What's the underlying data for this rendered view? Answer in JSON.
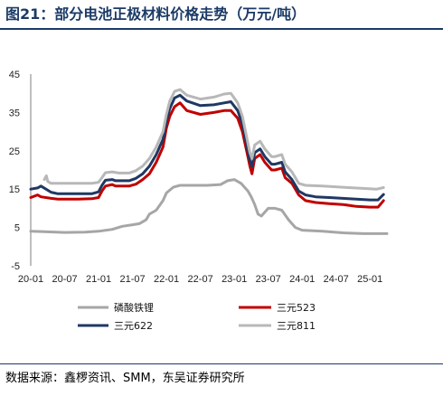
{
  "figure": {
    "title": "图21：部分电池正极材料价格走势（万元/吨）",
    "source": "数据来源：鑫椤资讯、SMM，东吴证券研究所"
  },
  "chart_data": {
    "type": "line",
    "ylim": [
      -5,
      45
    ],
    "yticks": [
      "45",
      "35",
      "25",
      "15",
      "5",
      "-5"
    ],
    "ytick_values": [
      45,
      35,
      25,
      15,
      5,
      -5
    ],
    "xlim": [
      2020.0,
      2025.25
    ],
    "xticks": [
      "20-01",
      "20-07",
      "21-01",
      "21-07",
      "22-01",
      "22-07",
      "23-01",
      "23-07",
      "24-01",
      "24-07",
      "25-01"
    ],
    "xtick_values": [
      2020.0,
      2020.5,
      2021.0,
      2021.5,
      2022.0,
      2022.5,
      2023.0,
      2023.5,
      2024.0,
      2024.5,
      2025.0
    ],
    "grid": false,
    "legend_position": "bottom",
    "series": [
      {
        "name": "磷酸铁锂",
        "color": "#a6a6a6",
        "x": [
          2020.0,
          2020.2,
          2020.5,
          2020.8,
          2021.0,
          2021.2,
          2021.35,
          2021.5,
          2021.6,
          2021.7,
          2021.75,
          2021.85,
          2021.95,
          2022.0,
          2022.1,
          2022.2,
          2022.4,
          2022.6,
          2022.8,
          2022.9,
          2023.0,
          2023.1,
          2023.2,
          2023.25,
          2023.3,
          2023.35,
          2023.4,
          2023.5,
          2023.6,
          2023.7,
          2023.8,
          2023.9,
          2024.0,
          2024.3,
          2024.6,
          2024.9,
          2025.1,
          2025.25
        ],
        "y": [
          4,
          3.9,
          3.7,
          3.8,
          4,
          4.5,
          5.3,
          5.7,
          6,
          7,
          8.5,
          9.5,
          12,
          14,
          15.5,
          16,
          16,
          16,
          16.2,
          17.2,
          17.5,
          16.5,
          14.5,
          13,
          11,
          8.5,
          8,
          10,
          10,
          9.5,
          7,
          5,
          4.3,
          4,
          3.6,
          3.4,
          3.4,
          3.4
        ]
      },
      {
        "name": "三元523",
        "color": "#c00000",
        "x": [
          2020.0,
          2020.1,
          2020.15,
          2020.3,
          2020.4,
          2020.5,
          2020.7,
          2020.9,
          2021.0,
          2021.05,
          2021.1,
          2021.2,
          2021.25,
          2021.3,
          2021.45,
          2021.55,
          2021.65,
          2021.75,
          2021.85,
          2021.95,
          2022.0,
          2022.05,
          2022.12,
          2022.2,
          2022.3,
          2022.5,
          2022.7,
          2022.85,
          2022.95,
          2023.05,
          2023.12,
          2023.2,
          2023.23,
          2023.26,
          2023.3,
          2023.38,
          2023.45,
          2023.55,
          2023.6,
          2023.7,
          2023.75,
          2023.85,
          2023.95,
          2024.05,
          2024.2,
          2024.4,
          2024.6,
          2024.8,
          2025.0,
          2025.12,
          2025.2
        ],
        "y": [
          12.8,
          13.5,
          13,
          12.6,
          12.4,
          12.4,
          12.4,
          12.5,
          12.8,
          14.5,
          15.8,
          16.2,
          15.8,
          15.8,
          15.8,
          16.3,
          17.5,
          19,
          22,
          26,
          31,
          34,
          36.5,
          37.5,
          35.5,
          34.5,
          35,
          35.5,
          35.5,
          33.5,
          30,
          23.5,
          21,
          19,
          23,
          24,
          22,
          20,
          20,
          20.5,
          18,
          16.5,
          13.5,
          12,
          11.5,
          11.2,
          11,
          10.5,
          10.3,
          10.3,
          12
        ]
      },
      {
        "name": "三元622",
        "color": "#1f3864",
        "x": [
          2020.0,
          2020.1,
          2020.15,
          2020.3,
          2020.4,
          2020.5,
          2020.7,
          2020.9,
          2021.0,
          2021.05,
          2021.1,
          2021.2,
          2021.25,
          2021.3,
          2021.45,
          2021.55,
          2021.65,
          2021.75,
          2021.85,
          2021.95,
          2022.0,
          2022.05,
          2022.12,
          2022.2,
          2022.3,
          2022.5,
          2022.7,
          2022.85,
          2022.95,
          2023.05,
          2023.12,
          2023.2,
          2023.23,
          2023.26,
          2023.3,
          2023.38,
          2023.45,
          2023.55,
          2023.6,
          2023.7,
          2023.75,
          2023.85,
          2023.95,
          2024.05,
          2024.2,
          2024.4,
          2024.6,
          2024.8,
          2025.0,
          2025.12,
          2025.2
        ],
        "y": [
          15,
          15.3,
          15.8,
          14.2,
          13.8,
          13.8,
          13.8,
          13.8,
          14.3,
          16,
          17.3,
          17.5,
          17.2,
          17.2,
          17.2,
          17.8,
          19,
          21,
          24,
          28,
          33,
          36,
          38.8,
          39.5,
          38,
          36.8,
          37,
          37.5,
          37.8,
          35.5,
          32,
          25,
          22.5,
          21,
          24.5,
          25.5,
          23.5,
          21.5,
          21.5,
          22,
          19.5,
          17.5,
          14.5,
          13.5,
          13,
          12.8,
          12.6,
          12.4,
          12.2,
          12.2,
          13.6
        ]
      },
      {
        "name": "三元811",
        "color": "#b8b8b8",
        "x": [
          2020.2,
          2020.23,
          2020.25,
          2020.3,
          2020.5,
          2020.7,
          2020.9,
          2021.0,
          2021.05,
          2021.1,
          2021.2,
          2021.3,
          2021.45,
          2021.55,
          2021.65,
          2021.75,
          2021.85,
          2021.95,
          2022.0,
          2022.05,
          2022.12,
          2022.2,
          2022.3,
          2022.5,
          2022.7,
          2022.85,
          2022.95,
          2023.05,
          2023.12,
          2023.2,
          2023.23,
          2023.26,
          2023.3,
          2023.38,
          2023.45,
          2023.55,
          2023.6,
          2023.7,
          2023.75,
          2023.85,
          2023.95,
          2024.05,
          2024.3,
          2024.6,
          2024.9,
          2025.1,
          2025.2
        ],
        "y": [
          17.5,
          18.5,
          17,
          16.5,
          16.5,
          16.5,
          16.5,
          16.8,
          18,
          19.3,
          19.5,
          19.2,
          19.2,
          19.8,
          21,
          23,
          26,
          30,
          34.5,
          38,
          40.5,
          41,
          39.5,
          38.5,
          39,
          39.8,
          40,
          37.5,
          34,
          27,
          24.5,
          23,
          26.5,
          27.5,
          25.5,
          23.5,
          23.5,
          24,
          21.5,
          19.5,
          16.5,
          16,
          15.8,
          15.5,
          15.2,
          15,
          15.4
        ]
      }
    ]
  }
}
